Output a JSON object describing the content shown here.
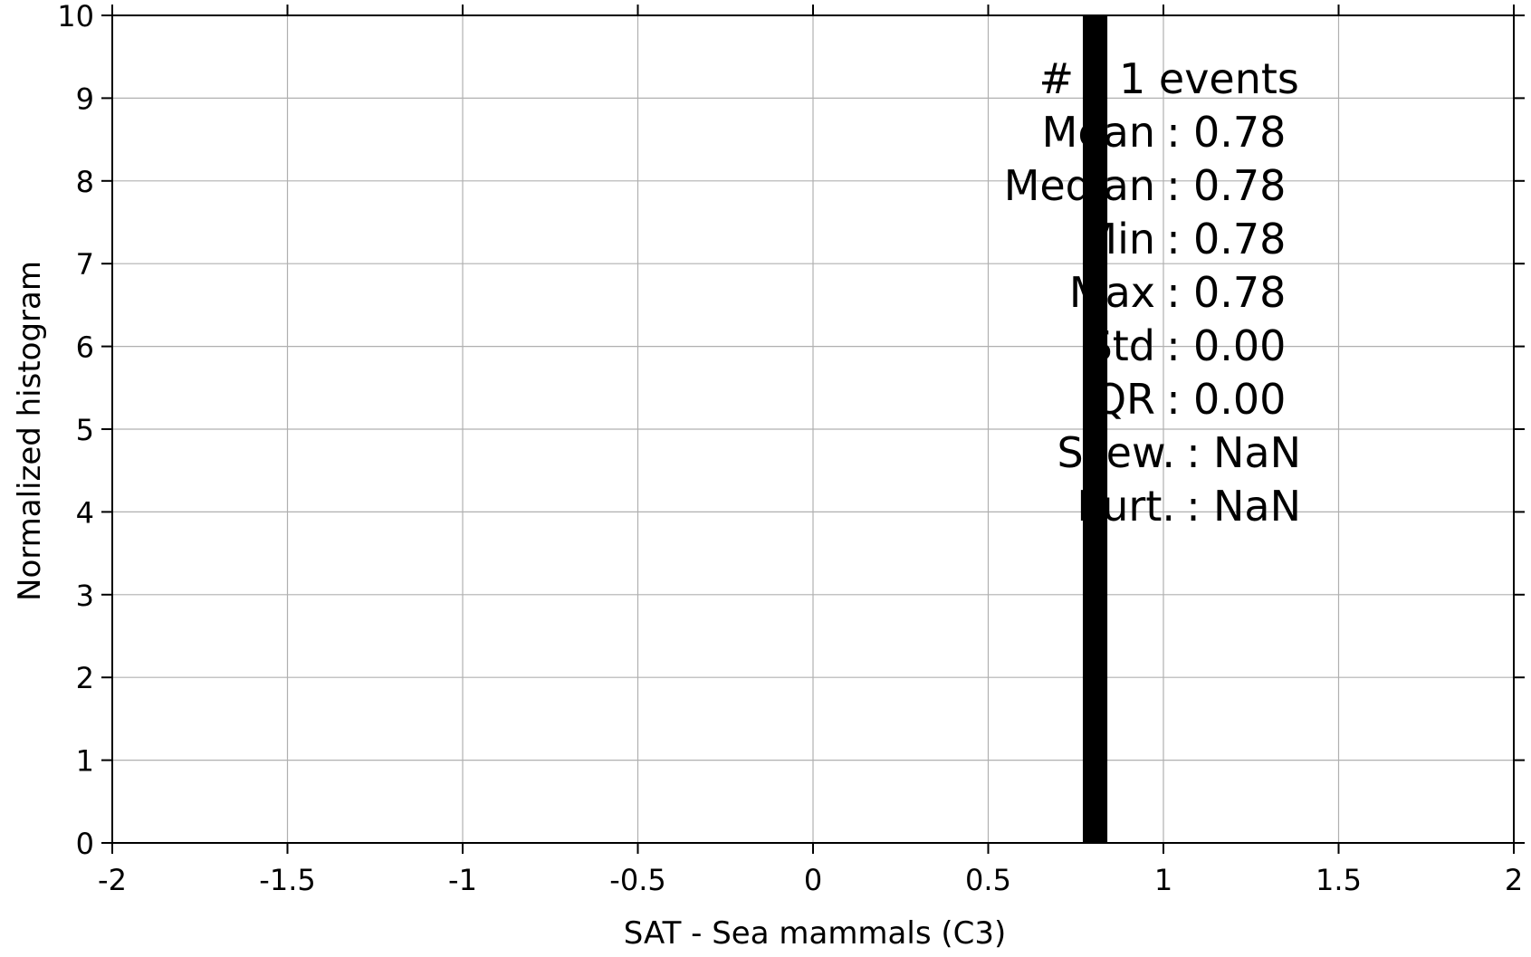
{
  "chart_data": {
    "type": "bar",
    "title": "",
    "xlabel": "SAT - Sea mammals  (C3)",
    "ylabel": "Normalized histogram",
    "xlim": [
      -2,
      2
    ],
    "ylim": [
      0,
      10
    ],
    "xticks": [
      -2,
      -1.5,
      -1,
      -0.5,
      0,
      0.5,
      1,
      1.5,
      2
    ],
    "xtick_labels": [
      "-2",
      "-1.5",
      "-1",
      "-0.5",
      "0",
      "0.5",
      "1",
      "1.5",
      "2"
    ],
    "yticks": [
      0,
      1,
      2,
      3,
      4,
      5,
      6,
      7,
      8,
      9,
      10
    ],
    "ytick_labels": [
      "0",
      "1",
      "2",
      "3",
      "4",
      "5",
      "6",
      "7",
      "8",
      "9",
      "10"
    ],
    "grid": true,
    "bars": [
      {
        "x_start": 0.77,
        "x_end": 0.84,
        "height": 10
      }
    ],
    "bar_color": "#000000",
    "grid_color": "#b0b0b0",
    "stats": [
      {
        "label": "#",
        "value": "1 events"
      },
      {
        "label": "Mean",
        "value": "0.78"
      },
      {
        "label": "Median",
        "value": "0.78"
      },
      {
        "label": "Min",
        "value": "0.78"
      },
      {
        "label": "Max",
        "value": "0.78"
      },
      {
        "label": "Std",
        "value": "0.00"
      },
      {
        "label": "IQR",
        "value": "0.00"
      },
      {
        "label": "Skew.",
        "value": "NaN"
      },
      {
        "label": "Kurt.",
        "value": "NaN"
      }
    ]
  }
}
